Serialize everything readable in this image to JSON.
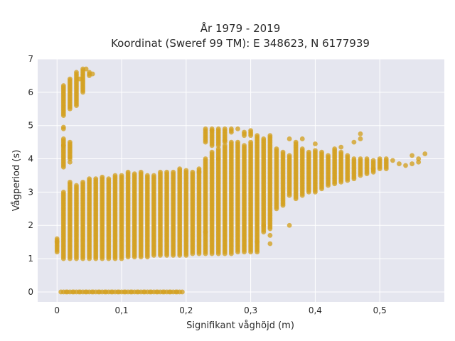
{
  "chart_data": {
    "type": "scatter",
    "title_lines": [
      "År 1979 - 2019",
      "Koordinat (Sweref 99 TM): E 348623, N 6177939"
    ],
    "xlabel": "Signifikant våghöjd (m)",
    "ylabel": "Vågperiod (s)",
    "xlim": [
      -0.03,
      0.6
    ],
    "ylim": [
      -0.3,
      7.0
    ],
    "x_ticks": [
      0,
      0.1,
      0.2,
      0.3,
      0.4,
      0.5
    ],
    "x_tick_labels": [
      "0",
      "0,1",
      "0,2",
      "0,3",
      "0,4",
      "0,5"
    ],
    "y_ticks": [
      0,
      1,
      2,
      3,
      4,
      5,
      6,
      7
    ],
    "y_tick_labels": [
      "0",
      "1",
      "2",
      "3",
      "4",
      "5",
      "6",
      "7"
    ],
    "grid": true,
    "colors": {
      "point": "#d4a020",
      "background": "#e5e6ef",
      "grid": "#ffffff"
    },
    "column_step": 0.01,
    "columns": [
      {
        "x": 0.0,
        "segments": [
          [
            1.2,
            1.6
          ]
        ]
      },
      {
        "x": 0.01,
        "segments": [
          [
            0,
            0
          ],
          [
            1.0,
            3.0
          ],
          [
            3.75,
            4.6
          ],
          [
            4.9,
            4.95
          ],
          [
            5.3,
            6.2
          ]
        ]
      },
      {
        "x": 0.02,
        "segments": [
          [
            0,
            0
          ],
          [
            1.0,
            3.3
          ],
          [
            4.0,
            4.5
          ],
          [
            5.5,
            6.4
          ]
        ]
      },
      {
        "x": 0.03,
        "segments": [
          [
            0,
            0
          ],
          [
            1.0,
            3.2
          ],
          [
            5.6,
            6.6
          ]
        ]
      },
      {
        "x": 0.04,
        "segments": [
          [
            0,
            0
          ],
          [
            1.0,
            3.3
          ],
          [
            6.0,
            6.7
          ]
        ]
      },
      {
        "x": 0.05,
        "segments": [
          [
            0,
            0
          ],
          [
            1.0,
            3.4
          ],
          [
            6.5,
            6.6
          ]
        ]
      },
      {
        "x": 0.06,
        "segments": [
          [
            0,
            0
          ],
          [
            1.0,
            3.4
          ]
        ]
      },
      {
        "x": 0.07,
        "segments": [
          [
            0,
            0
          ],
          [
            1.0,
            3.45
          ]
        ]
      },
      {
        "x": 0.08,
        "segments": [
          [
            0,
            0
          ],
          [
            1.0,
            3.4
          ]
        ]
      },
      {
        "x": 0.09,
        "segments": [
          [
            0,
            0
          ],
          [
            1.0,
            3.5
          ]
        ]
      },
      {
        "x": 0.1,
        "segments": [
          [
            0,
            0
          ],
          [
            1.0,
            3.5
          ]
        ]
      },
      {
        "x": 0.11,
        "segments": [
          [
            0,
            0
          ],
          [
            1.05,
            3.6
          ]
        ]
      },
      {
        "x": 0.12,
        "segments": [
          [
            0,
            0
          ],
          [
            1.05,
            3.55
          ]
        ]
      },
      {
        "x": 0.13,
        "segments": [
          [
            0,
            0
          ],
          [
            1.05,
            3.6
          ]
        ]
      },
      {
        "x": 0.14,
        "segments": [
          [
            0,
            0
          ],
          [
            1.05,
            3.5
          ]
        ]
      },
      {
        "x": 0.15,
        "segments": [
          [
            0,
            0
          ],
          [
            1.1,
            3.5
          ]
        ]
      },
      {
        "x": 0.16,
        "segments": [
          [
            0,
            0
          ],
          [
            1.1,
            3.6
          ]
        ]
      },
      {
        "x": 0.17,
        "segments": [
          [
            0,
            0
          ],
          [
            1.1,
            3.6
          ]
        ]
      },
      {
        "x": 0.18,
        "segments": [
          [
            0,
            0
          ],
          [
            1.1,
            3.6
          ]
        ]
      },
      {
        "x": 0.19,
        "segments": [
          [
            0,
            0
          ],
          [
            1.1,
            3.7
          ]
        ]
      },
      {
        "x": 0.2,
        "segments": [
          [
            1.1,
            3.65
          ]
        ]
      },
      {
        "x": 0.21,
        "segments": [
          [
            1.15,
            3.6
          ]
        ]
      },
      {
        "x": 0.22,
        "segments": [
          [
            1.15,
            3.7
          ]
        ]
      },
      {
        "x": 0.23,
        "segments": [
          [
            1.15,
            4.0
          ],
          [
            4.5,
            4.9
          ]
        ]
      },
      {
        "x": 0.24,
        "segments": [
          [
            1.15,
            4.2
          ],
          [
            4.4,
            4.9
          ]
        ]
      },
      {
        "x": 0.25,
        "segments": [
          [
            1.15,
            4.3
          ],
          [
            4.4,
            4.9
          ]
        ]
      },
      {
        "x": 0.26,
        "segments": [
          [
            1.15,
            4.4
          ],
          [
            4.5,
            4.9
          ]
        ]
      },
      {
        "x": 0.27,
        "segments": [
          [
            1.15,
            4.5
          ],
          [
            4.8,
            4.9
          ]
        ]
      },
      {
        "x": 0.28,
        "segments": [
          [
            1.2,
            4.5
          ]
        ]
      },
      {
        "x": 0.29,
        "segments": [
          [
            1.2,
            4.4
          ],
          [
            4.7,
            4.8
          ]
        ]
      },
      {
        "x": 0.3,
        "segments": [
          [
            1.2,
            4.5
          ],
          [
            4.7,
            4.85
          ]
        ]
      },
      {
        "x": 0.31,
        "segments": [
          [
            1.2,
            4.7
          ]
        ]
      },
      {
        "x": 0.32,
        "segments": [
          [
            1.8,
            4.6
          ]
        ]
      },
      {
        "x": 0.33,
        "segments": [
          [
            1.9,
            4.7
          ]
        ]
      },
      {
        "x": 0.34,
        "segments": [
          [
            2.5,
            4.3
          ]
        ]
      },
      {
        "x": 0.35,
        "segments": [
          [
            2.6,
            4.2
          ]
        ]
      },
      {
        "x": 0.36,
        "segments": [
          [
            2.9,
            4.1
          ]
        ]
      },
      {
        "x": 0.37,
        "segments": [
          [
            2.8,
            4.5
          ]
        ]
      },
      {
        "x": 0.38,
        "segments": [
          [
            2.9,
            4.3
          ]
        ]
      },
      {
        "x": 0.39,
        "segments": [
          [
            3.0,
            4.2
          ]
        ]
      },
      {
        "x": 0.4,
        "segments": [
          [
            3.0,
            4.25
          ]
        ]
      },
      {
        "x": 0.41,
        "segments": [
          [
            3.1,
            4.2
          ]
        ]
      },
      {
        "x": 0.42,
        "segments": [
          [
            3.2,
            4.1
          ]
        ]
      },
      {
        "x": 0.43,
        "segments": [
          [
            3.25,
            4.3
          ]
        ]
      },
      {
        "x": 0.44,
        "segments": [
          [
            3.3,
            4.2
          ]
        ]
      },
      {
        "x": 0.45,
        "segments": [
          [
            3.35,
            4.1
          ]
        ]
      },
      {
        "x": 0.46,
        "segments": [
          [
            3.4,
            4.0
          ]
        ]
      },
      {
        "x": 0.47,
        "segments": [
          [
            3.5,
            4.0
          ]
        ]
      },
      {
        "x": 0.48,
        "segments": [
          [
            3.55,
            4.0
          ]
        ]
      },
      {
        "x": 0.49,
        "segments": [
          [
            3.6,
            3.95
          ]
        ]
      },
      {
        "x": 0.5,
        "segments": [
          [
            3.7,
            4.0
          ]
        ]
      },
      {
        "x": 0.51,
        "segments": [
          [
            3.7,
            4.0
          ]
        ]
      }
    ],
    "extra_points": [
      [
        0.32,
        2.0
      ],
      [
        0.36,
        2.0
      ],
      [
        0.33,
        1.7
      ],
      [
        0.31,
        1.5
      ],
      [
        0.33,
        1.45
      ],
      [
        0.36,
        4.6
      ],
      [
        0.38,
        4.6
      ],
      [
        0.4,
        4.45
      ],
      [
        0.44,
        4.35
      ],
      [
        0.46,
        4.5
      ],
      [
        0.47,
        4.75
      ],
      [
        0.47,
        4.6
      ],
      [
        0.49,
        3.7
      ],
      [
        0.52,
        3.95
      ],
      [
        0.53,
        3.85
      ],
      [
        0.54,
        3.8
      ],
      [
        0.55,
        3.85
      ],
      [
        0.55,
        4.1
      ],
      [
        0.56,
        4.0
      ],
      [
        0.57,
        4.15
      ],
      [
        0.56,
        3.9
      ],
      [
        0.035,
        6.4
      ],
      [
        0.045,
        6.7
      ],
      [
        0.055,
        6.55
      ],
      [
        0.28,
        4.9
      ],
      [
        0.26,
        4.55
      ],
      [
        0.24,
        4.85
      ],
      [
        0.25,
        4.0
      ],
      [
        0.22,
        3.6
      ],
      [
        0.23,
        1.8
      ],
      [
        0.01,
        4.4
      ],
      [
        0.02,
        3.9
      ],
      [
        0.0,
        1.5
      ]
    ]
  }
}
